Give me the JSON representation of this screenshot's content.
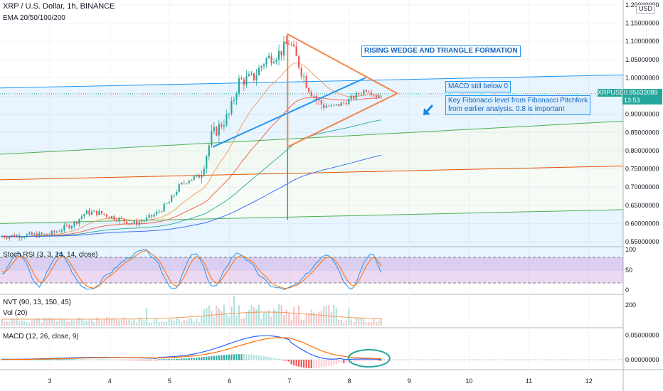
{
  "header": {
    "title": "XRP / U.S. Dollar, 1h, BINANCE",
    "ema": "EMA 20/50/100/200"
  },
  "panes": {
    "stoch": "Stoch RSI (3, 3, 14, 14, close)",
    "nvt": "NVT (90, 13, 150, 45)",
    "vol": "Vol (20)",
    "macd": "MACD (12, 26, close, 9)"
  },
  "annotations": {
    "pattern": "RISING WEDGE AND TRIANGLE FORMATION",
    "macd_note": "MACD still below 0",
    "fib_note": [
      "Key Fibonacci level from Fibonacci Pitchfork",
      "from earlier analysis. 0.8 is important"
    ]
  },
  "price_axis": {
    "currency": "USD",
    "ticks": [
      "1.20000000",
      "1.15000000",
      "1.10000000",
      "1.05000000",
      "1.00000000",
      "0.95000000",
      "0.90000000",
      "0.85000000",
      "0.80000000",
      "0.75000000",
      "0.70000000",
      "0.65000000",
      "0.60000000",
      "0.55000000"
    ],
    "symbol": "XRPUSD",
    "last_price": "0.95632089",
    "countdown": "13:53"
  },
  "stoch_axis": [
    "100",
    "50",
    "0"
  ],
  "vol_axis": [
    "200"
  ],
  "macd_axis": [
    "0.05000000",
    "0.00000000"
  ],
  "time_axis": [
    "3",
    "4",
    "5",
    "6",
    "7",
    "8",
    "9",
    "10",
    "11",
    "12"
  ],
  "colors": {
    "ema20": "#ef9a5a",
    "ema50": "#f7523a",
    "ema100": "#26a69a",
    "ema200": "#2962ff",
    "up": "#26a69a",
    "down": "#ef5350",
    "stoch_k": "#2196f3",
    "stoch_d": "#ff6d00",
    "pattern_triangle": "#f4844b",
    "pattern_wedge": "#2196f3",
    "channel_blue": "#2196f3",
    "channel_green": "#4caf50",
    "channel_red": "#e65100"
  },
  "chart_data": {
    "type": "candlestick",
    "title": "XRP / U.S. Dollar, 1h, BINANCE",
    "indicators": [
      "EMA 20/50/100/200",
      "Stoch RSI (3, 3, 14, 14, close)",
      "NVT (90, 13, 150, 45)",
      "Vol (20)",
      "MACD (12, 26, close, 9)"
    ],
    "ylim": [
      0.55,
      1.2
    ],
    "x_ticks": [
      "3",
      "4",
      "5",
      "6",
      "7",
      "8",
      "9",
      "10",
      "11",
      "12"
    ],
    "close_path": [
      [
        3.0,
        0.57
      ],
      [
        3.4,
        0.6
      ],
      [
        3.6,
        0.63
      ],
      [
        3.8,
        0.63
      ],
      [
        4.0,
        0.62
      ],
      [
        4.2,
        0.61
      ],
      [
        4.4,
        0.6
      ],
      [
        4.6,
        0.61
      ],
      [
        4.8,
        0.63
      ],
      [
        5.0,
        0.66
      ],
      [
        5.15,
        0.7
      ],
      [
        5.3,
        0.72
      ],
      [
        5.5,
        0.73
      ],
      [
        5.6,
        0.78
      ],
      [
        5.7,
        0.84
      ],
      [
        5.8,
        0.86
      ],
      [
        6.0,
        0.9
      ],
      [
        6.15,
        0.99
      ],
      [
        6.4,
        1.0
      ],
      [
        6.6,
        1.05
      ],
      [
        6.85,
        1.07
      ],
      [
        7.0,
        1.1
      ],
      [
        7.15,
        1.04
      ],
      [
        7.3,
        0.98
      ],
      [
        7.5,
        0.93
      ],
      [
        7.7,
        0.92
      ],
      [
        7.9,
        0.93
      ],
      [
        8.1,
        0.95
      ],
      [
        8.3,
        0.97
      ],
      [
        8.45,
        0.95
      ],
      [
        8.55,
        0.956
      ]
    ],
    "last_close": 0.95632089,
    "stoch_levels": [
      20,
      80
    ],
    "stoch_ylim": [
      0,
      100
    ],
    "macd_ylim": [
      -0.02,
      0.065
    ],
    "grid": true,
    "legend": "top-left"
  }
}
